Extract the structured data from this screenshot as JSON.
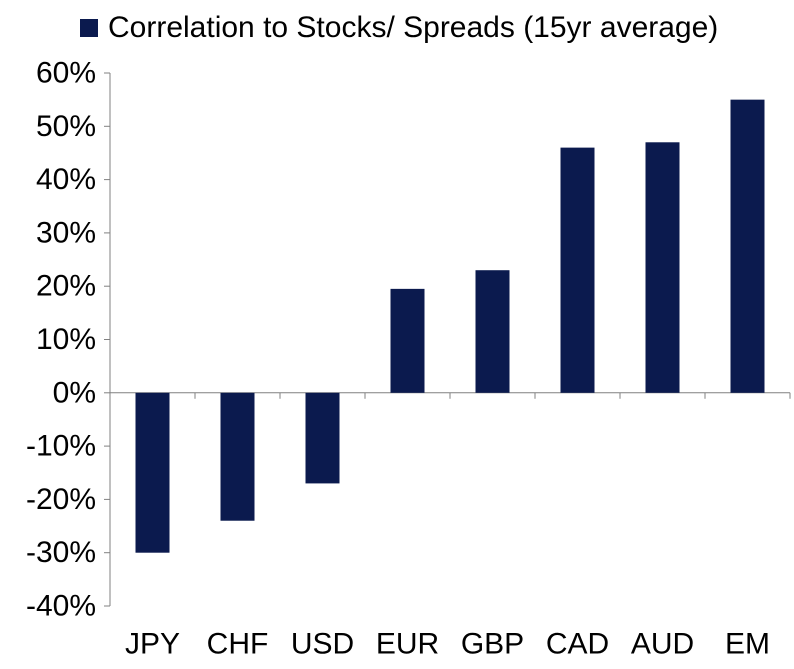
{
  "chart_data": {
    "type": "bar",
    "title": "",
    "xlabel": "",
    "ylabel": "",
    "categories": [
      "JPY",
      "CHF",
      "USD",
      "EUR",
      "GBP",
      "CAD",
      "AUD",
      "EM"
    ],
    "series": [
      {
        "name": "Correlation to Stocks/ Spreads (15yr average)",
        "values": [
          -30,
          -24,
          -17,
          19.5,
          23,
          46,
          47,
          55
        ],
        "color": "#0b1a4e"
      }
    ],
    "ylim": [
      -40,
      60
    ],
    "yticks": [
      60,
      50,
      40,
      30,
      20,
      10,
      0,
      -10,
      -20,
      -30,
      -40
    ],
    "ytick_labels": [
      "60%",
      "50%",
      "40%",
      "30%",
      "20%",
      "10%",
      "0%",
      "-10%",
      "-20%",
      "-30%",
      "-40%"
    ],
    "grid": false,
    "legend_position": "top"
  }
}
